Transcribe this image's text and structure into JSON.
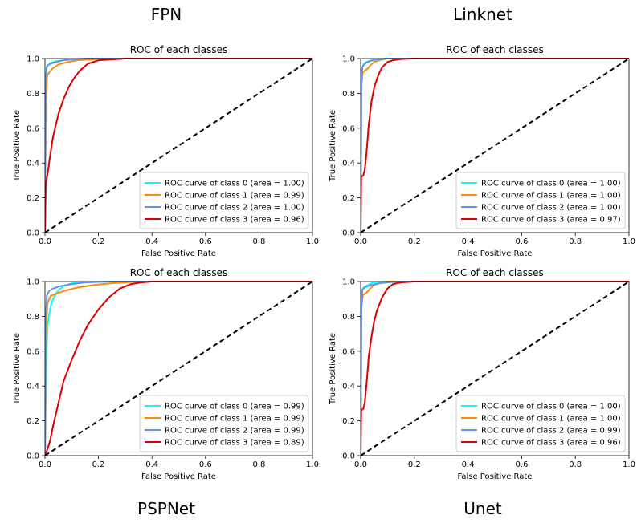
{
  "figure": {
    "labels": [
      "FPN",
      "Linknet",
      "PSPNet",
      "Unet"
    ]
  },
  "chart_data": [
    {
      "model": "FPN",
      "type": "line",
      "title": "ROC of each classes",
      "xlabel": "False Positive Rate",
      "ylabel": "True Positive Rate",
      "xlim": [
        0.0,
        1.0
      ],
      "ylim": [
        0.0,
        1.0
      ],
      "xticks": [
        "0.0",
        "0.2",
        "0.4",
        "0.6",
        "0.8",
        "1.0"
      ],
      "yticks": [
        "0.0",
        "0.2",
        "0.4",
        "0.6",
        "0.8",
        "1.0"
      ],
      "legend_position": "lower right",
      "series": [
        {
          "name": "ROC curve of class 0 (area = 1.00)",
          "color": "#00ffff",
          "x": [
            0,
            0.003,
            0.006,
            0.01,
            0.02,
            0.04,
            0.07,
            0.1,
            0.2,
            1.0
          ],
          "y": [
            0,
            0.8,
            0.94,
            0.96,
            0.975,
            0.985,
            0.99,
            0.995,
            1.0,
            1.0
          ]
        },
        {
          "name": "ROC curve of class 1 (area = 0.99)",
          "color": "#ff8c00",
          "x": [
            0,
            0.003,
            0.008,
            0.015,
            0.03,
            0.05,
            0.08,
            0.12,
            0.2,
            0.3,
            1.0
          ],
          "y": [
            0,
            0.75,
            0.9,
            0.92,
            0.945,
            0.965,
            0.978,
            0.99,
            0.997,
            1.0,
            1.0
          ]
        },
        {
          "name": "ROC curve of class 2 (area = 1.00)",
          "color": "#6495ed",
          "x": [
            0,
            0.003,
            0.006,
            0.01,
            0.02,
            0.04,
            0.07,
            0.1,
            0.15,
            1.0
          ],
          "y": [
            0,
            0.85,
            0.95,
            0.96,
            0.97,
            0.98,
            0.99,
            0.995,
            1.0,
            1.0
          ]
        },
        {
          "name": "ROC curve of class 3 (area = 0.96)",
          "color": "#dd0000",
          "x": [
            0,
            0.003,
            0.01,
            0.02,
            0.03,
            0.05,
            0.07,
            0.09,
            0.11,
            0.13,
            0.16,
            0.2,
            0.25,
            0.3,
            1.0
          ],
          "y": [
            0,
            0.28,
            0.34,
            0.45,
            0.55,
            0.68,
            0.77,
            0.84,
            0.89,
            0.93,
            0.97,
            0.99,
            0.995,
            1.0,
            1.0
          ]
        },
        {
          "name": "",
          "color": "#000000",
          "dashed": true,
          "x": [
            0,
            1
          ],
          "y": [
            0,
            1
          ]
        }
      ]
    },
    {
      "model": "Linknet",
      "type": "line",
      "title": "ROC of each classes",
      "xlabel": "False Positive Rate",
      "ylabel": "True Positive Rate",
      "xlim": [
        0.0,
        1.0
      ],
      "ylim": [
        0.0,
        1.0
      ],
      "xticks": [
        "0.0",
        "0.2",
        "0.4",
        "0.6",
        "0.8",
        "1.0"
      ],
      "yticks": [
        "0.0",
        "0.2",
        "0.4",
        "0.6",
        "0.8",
        "1.0"
      ],
      "legend_position": "lower right",
      "series": [
        {
          "name": "ROC curve of class 0 (area = 1.00)",
          "color": "#00ffff",
          "x": [
            0,
            0.003,
            0.006,
            0.01,
            0.02,
            0.04,
            0.06,
            0.1,
            1.0
          ],
          "y": [
            0,
            0.85,
            0.95,
            0.965,
            0.98,
            0.99,
            0.997,
            1.0,
            1.0
          ]
        },
        {
          "name": "ROC curve of class 1 (area = 1.00)",
          "color": "#ff8c00",
          "x": [
            0,
            0.003,
            0.008,
            0.015,
            0.025,
            0.035,
            0.05,
            0.07,
            0.1,
            1.0
          ],
          "y": [
            0,
            0.85,
            0.92,
            0.93,
            0.94,
            0.96,
            0.98,
            0.99,
            1.0,
            1.0
          ]
        },
        {
          "name": "ROC curve of class 2 (area = 1.00)",
          "color": "#6495ed",
          "x": [
            0,
            0.003,
            0.006,
            0.01,
            0.02,
            0.04,
            0.06,
            0.1,
            1.0
          ],
          "y": [
            0,
            0.88,
            0.95,
            0.96,
            0.975,
            0.988,
            0.995,
            1.0,
            1.0
          ]
        },
        {
          "name": "ROC curve of class 3 (area = 0.97)",
          "color": "#dd0000",
          "x": [
            0,
            0.002,
            0.01,
            0.015,
            0.02,
            0.025,
            0.03,
            0.04,
            0.05,
            0.06,
            0.07,
            0.08,
            0.1,
            0.12,
            0.15,
            0.2,
            1.0
          ],
          "y": [
            0,
            0.32,
            0.33,
            0.36,
            0.43,
            0.52,
            0.62,
            0.75,
            0.83,
            0.88,
            0.92,
            0.95,
            0.98,
            0.99,
            0.997,
            1.0,
            1.0
          ]
        },
        {
          "name": "",
          "color": "#000000",
          "dashed": true,
          "x": [
            0,
            1
          ],
          "y": [
            0,
            1
          ]
        }
      ]
    },
    {
      "model": "PSPNet",
      "type": "line",
      "title": "ROC of each classes",
      "xlabel": "False Positive Rate",
      "ylabel": "True Positive Rate",
      "xlim": [
        0.0,
        1.0
      ],
      "ylim": [
        0.0,
        1.0
      ],
      "xticks": [
        "0.0",
        "0.2",
        "0.4",
        "0.6",
        "0.8",
        "1.0"
      ],
      "yticks": [
        "0.0",
        "0.2",
        "0.4",
        "0.6",
        "0.8",
        "1.0"
      ],
      "legend_position": "lower right",
      "series": [
        {
          "name": "ROC curve of class 0 (area = 0.99)",
          "color": "#00ffff",
          "x": [
            0,
            0.005,
            0.01,
            0.02,
            0.03,
            0.05,
            0.07,
            0.1,
            0.15,
            0.25,
            1.0
          ],
          "y": [
            0,
            0.55,
            0.75,
            0.85,
            0.9,
            0.95,
            0.975,
            0.99,
            0.997,
            1.0,
            1.0
          ]
        },
        {
          "name": "ROC curve of class 1 (area = 0.99)",
          "color": "#ff8c00",
          "x": [
            0,
            0.005,
            0.01,
            0.02,
            0.04,
            0.08,
            0.12,
            0.18,
            0.25,
            0.35,
            1.0
          ],
          "y": [
            0,
            0.75,
            0.88,
            0.915,
            0.93,
            0.95,
            0.965,
            0.98,
            0.99,
            1.0,
            1.0
          ]
        },
        {
          "name": "ROC curve of class 2 (area = 0.99)",
          "color": "#6495ed",
          "x": [
            0,
            0.003,
            0.007,
            0.015,
            0.03,
            0.06,
            0.1,
            0.15,
            0.25,
            1.0
          ],
          "y": [
            0,
            0.8,
            0.92,
            0.945,
            0.96,
            0.975,
            0.985,
            0.995,
            1.0,
            1.0
          ]
        },
        {
          "name": "ROC curve of class 3 (area = 0.89)",
          "color": "#dd0000",
          "x": [
            0,
            0.01,
            0.02,
            0.03,
            0.05,
            0.07,
            0.1,
            0.13,
            0.16,
            0.2,
            0.24,
            0.28,
            0.32,
            0.36,
            0.4,
            1.0
          ],
          "y": [
            0,
            0.04,
            0.09,
            0.17,
            0.3,
            0.43,
            0.55,
            0.66,
            0.75,
            0.84,
            0.91,
            0.96,
            0.985,
            0.995,
            1.0,
            1.0
          ]
        },
        {
          "name": "",
          "color": "#000000",
          "dashed": true,
          "x": [
            0,
            1
          ],
          "y": [
            0,
            1
          ]
        }
      ]
    },
    {
      "model": "Unet",
      "type": "line",
      "title": "ROC of each classes",
      "xlabel": "False Positive Rate",
      "ylabel": "True Positive Rate",
      "xlim": [
        0.0,
        1.0
      ],
      "ylim": [
        0.0,
        1.0
      ],
      "xticks": [
        "0.0",
        "0.2",
        "0.4",
        "0.6",
        "0.8",
        "1.0"
      ],
      "yticks": [
        "0.0",
        "0.2",
        "0.4",
        "0.6",
        "0.8",
        "1.0"
      ],
      "legend_position": "lower right",
      "series": [
        {
          "name": "ROC curve of class 0 (area = 1.00)",
          "color": "#00ffff",
          "x": [
            0,
            0.003,
            0.006,
            0.01,
            0.02,
            0.04,
            0.06,
            0.1,
            1.0
          ],
          "y": [
            0,
            0.85,
            0.95,
            0.965,
            0.975,
            0.99,
            0.997,
            1.0,
            1.0
          ]
        },
        {
          "name": "ROC curve of class 1 (area = 1.00)",
          "color": "#ff8c00",
          "x": [
            0,
            0.003,
            0.008,
            0.015,
            0.025,
            0.035,
            0.05,
            0.07,
            0.1,
            1.0
          ],
          "y": [
            0,
            0.85,
            0.92,
            0.93,
            0.94,
            0.96,
            0.98,
            0.99,
            1.0,
            1.0
          ]
        },
        {
          "name": "ROC curve of class 2 (area = 0.99)",
          "color": "#6495ed",
          "x": [
            0,
            0.003,
            0.006,
            0.01,
            0.02,
            0.04,
            0.07,
            0.1,
            0.15,
            1.0
          ],
          "y": [
            0,
            0.85,
            0.95,
            0.96,
            0.97,
            0.98,
            0.99,
            0.995,
            1.0,
            1.0
          ]
        },
        {
          "name": "ROC curve of class 3 (area = 0.96)",
          "color": "#dd0000",
          "x": [
            0,
            0.002,
            0.01,
            0.015,
            0.02,
            0.025,
            0.03,
            0.04,
            0.05,
            0.06,
            0.07,
            0.08,
            0.1,
            0.12,
            0.15,
            0.2,
            1.0
          ],
          "y": [
            0,
            0.26,
            0.27,
            0.3,
            0.38,
            0.47,
            0.57,
            0.68,
            0.77,
            0.83,
            0.87,
            0.91,
            0.96,
            0.985,
            0.995,
            1.0,
            1.0
          ]
        },
        {
          "name": "",
          "color": "#000000",
          "dashed": true,
          "x": [
            0,
            1
          ],
          "y": [
            0,
            1
          ]
        }
      ]
    }
  ]
}
